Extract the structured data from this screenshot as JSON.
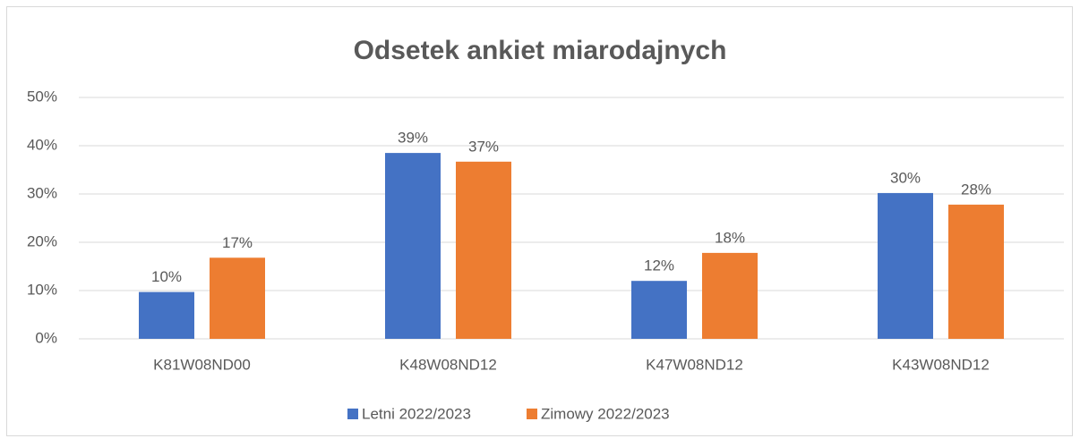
{
  "chart_data": {
    "type": "bar",
    "title": "Odsetek ankiet miarodajnych",
    "categories": [
      "K81W08ND00",
      "K48W08ND12",
      "K47W08ND12",
      "K43W08ND12"
    ],
    "series": [
      {
        "name": "Letni 2022/2023",
        "color": "#4472c4",
        "values": [
          9.7,
          38.5,
          12.0,
          30.2
        ],
        "value_labels": [
          "10%",
          "39%",
          "12%",
          "30%"
        ]
      },
      {
        "name": "Zimowy 2022/2023",
        "color": "#ed7d31",
        "values": [
          16.8,
          36.7,
          17.8,
          27.8
        ],
        "value_labels": [
          "17%",
          "37%",
          "18%",
          "28%"
        ]
      }
    ],
    "ylim": [
      0,
      50
    ],
    "yticks": [
      {
        "value": 0,
        "label": "0%"
      },
      {
        "value": 10,
        "label": "10%"
      },
      {
        "value": 20,
        "label": "20%"
      },
      {
        "value": 30,
        "label": "30%"
      },
      {
        "value": 40,
        "label": "40%"
      },
      {
        "value": 50,
        "label": "50%"
      }
    ],
    "grid": true,
    "legend": "bottom"
  }
}
